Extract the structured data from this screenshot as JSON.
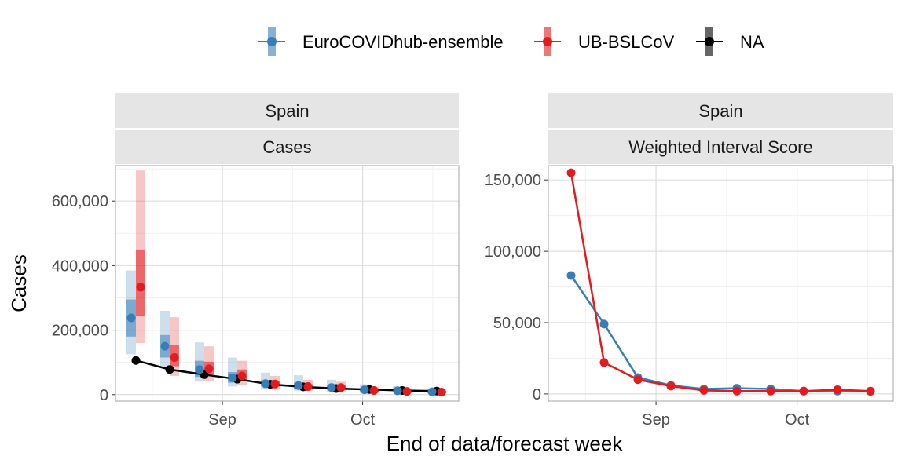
{
  "x_axis_title": "End of data/forecast week",
  "legend": {
    "entries": [
      {
        "label": "EuroCOVIDhub-ensemble",
        "color": "#377EB8"
      },
      {
        "label": "UB-BSLCoV",
        "color": "#E41A1C"
      },
      {
        "label": "NA",
        "color": "#000000"
      }
    ]
  },
  "chart_data": [
    {
      "type": "line",
      "strip_top": "Spain",
      "strip_bottom": "Cases",
      "ylabel": "Cases",
      "xlabel": "End of data/forecast week",
      "x_ticks": [
        "Sep",
        "Oct"
      ],
      "ylim": [
        -20000,
        710000
      ],
      "y_ticks": [
        0,
        200000,
        400000,
        600000
      ],
      "y_tick_labels": [
        "0",
        "200,000",
        "400,000",
        "600,000"
      ],
      "x": [
        "Aug 14",
        "Aug 21",
        "Aug 28",
        "Sep 4",
        "Sep 11",
        "Sep 18",
        "Sep 25",
        "Oct 2",
        "Oct 9",
        "Oct 16"
      ],
      "series": [
        {
          "name": "NA",
          "color": "#000000",
          "values": [
            106000,
            78000,
            62000,
            48000,
            32000,
            24000,
            19000,
            16000,
            13000,
            11000
          ]
        },
        {
          "name": "EuroCOVIDhub-ensemble",
          "color": "#377EB8",
          "median": [
            238000,
            150000,
            78000,
            52000,
            34000,
            28000,
            22000,
            15000,
            12000,
            9000
          ],
          "q25": [
            180000,
            115000,
            55000,
            37000,
            26000,
            19000,
            15000,
            10000,
            8000,
            6000
          ],
          "q75": [
            295000,
            185000,
            105000,
            70000,
            44000,
            37000,
            29000,
            20000,
            16000,
            12000
          ],
          "q05": [
            125000,
            85000,
            40000,
            25000,
            16000,
            12000,
            10000,
            6000,
            5000,
            3000
          ],
          "q95": [
            385000,
            260000,
            162000,
            115000,
            68000,
            60000,
            46000,
            32000,
            26000,
            19000
          ]
        },
        {
          "name": "UB-BSLCoV",
          "color": "#E41A1C",
          "median": [
            333000,
            115000,
            80000,
            58000,
            33000,
            25000,
            22000,
            13000,
            10000,
            8000
          ],
          "q25": [
            245000,
            88000,
            62000,
            44000,
            25000,
            19000,
            16000,
            9000,
            7000,
            5500
          ],
          "q75": [
            450000,
            155000,
            102000,
            78000,
            42000,
            32000,
            28000,
            17000,
            13000,
            11000
          ],
          "q05": [
            160000,
            58000,
            42000,
            30000,
            15000,
            12000,
            10000,
            5000,
            4000,
            3000
          ],
          "q95": [
            695000,
            240000,
            150000,
            105000,
            58000,
            46000,
            40000,
            25000,
            20000,
            16000
          ]
        }
      ]
    },
    {
      "type": "line",
      "strip_top": "Spain",
      "strip_bottom": "Weighted Interval Score",
      "xlabel": "End of data/forecast week",
      "x_ticks": [
        "Sep",
        "Oct"
      ],
      "ylim": [
        -5000,
        160000
      ],
      "y_ticks": [
        0,
        50000,
        100000,
        150000
      ],
      "y_tick_labels": [
        "0",
        "50,000",
        "100,000",
        "150,000"
      ],
      "x": [
        "Aug 14",
        "Aug 21",
        "Aug 28",
        "Sep 4",
        "Sep 11",
        "Sep 18",
        "Sep 25",
        "Oct 2",
        "Oct 9",
        "Oct 16"
      ],
      "series": [
        {
          "name": "EuroCOVIDhub-ensemble",
          "color": "#377EB8",
          "values": [
            83000,
            49000,
            11500,
            6000,
            3500,
            4000,
            3500,
            2000,
            2000,
            1800
          ]
        },
        {
          "name": "UB-BSLCoV",
          "color": "#E41A1C",
          "values": [
            155000,
            22000,
            10000,
            5500,
            2500,
            2000,
            2000,
            2000,
            3000,
            2000
          ]
        }
      ]
    }
  ]
}
